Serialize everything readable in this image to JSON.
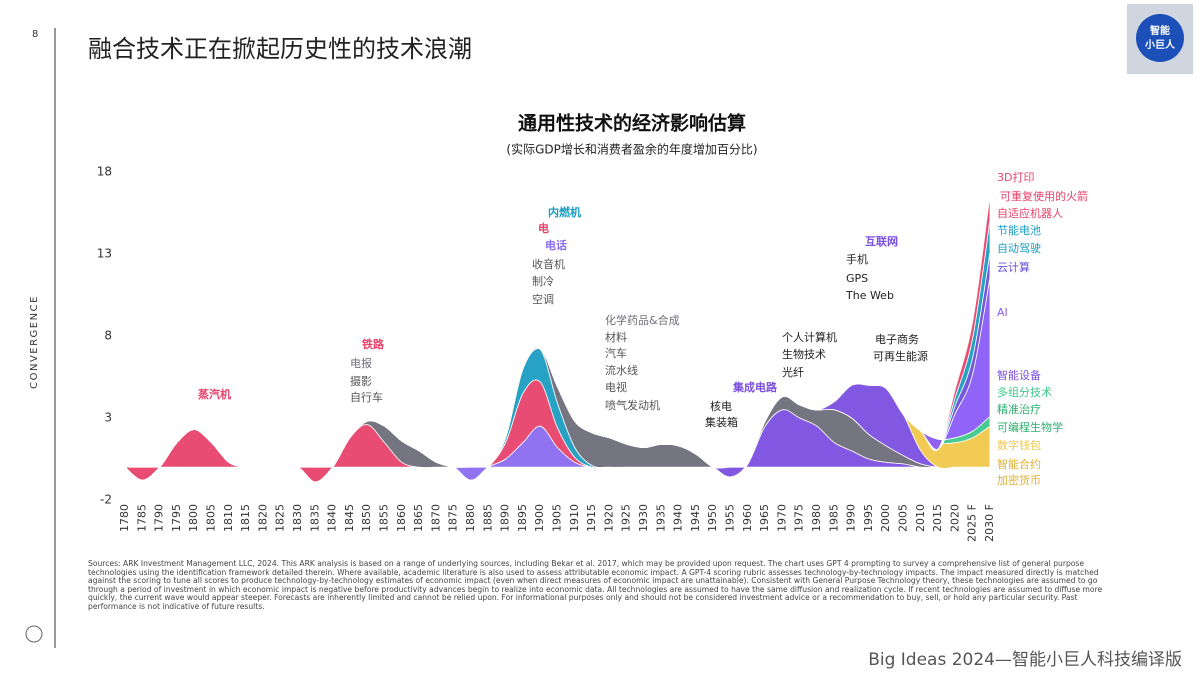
{
  "page_number": "8",
  "page_title": "融合技术正在掀起历史性的技术浪潮",
  "logo": [
    "智能",
    "小巨人"
  ],
  "side_label": "CONVERGENCE",
  "chart_data": {
    "type": "stream",
    "title": "通用性技术的经济影响估算",
    "subtitle": "(实际GDP增长和消费者盈余的年度增加百分比)",
    "categories": [
      "1780",
      "1785",
      "1790",
      "1795",
      "1800",
      "1805",
      "1810",
      "1815",
      "1820",
      "1825",
      "1830",
      "1835",
      "1840",
      "1845",
      "1850",
      "1855",
      "1860",
      "1865",
      "1870",
      "1875",
      "1880",
      "1885",
      "1890",
      "1895",
      "1900",
      "1905",
      "1910",
      "1915",
      "1920",
      "1925",
      "1930",
      "1935",
      "1940",
      "1945",
      "1950",
      "1955",
      "1960",
      "1965",
      "1970",
      "1975",
      "1980",
      "1985",
      "1990",
      "1995",
      "2000",
      "2005",
      "2010",
      "2015",
      "2020",
      "2025 F",
      "2030 F"
    ],
    "ylim": [
      -2,
      18
    ],
    "yticks": [
      -2,
      3,
      8,
      13,
      18
    ],
    "series": [
      {
        "name": "蒸汽机",
        "color": "#e8426a",
        "values": [
          0,
          -0.8,
          0,
          1.5,
          2.3,
          1.5,
          0.3,
          0,
          0,
          0,
          0,
          0,
          0,
          0,
          0,
          0,
          0,
          0,
          0,
          0,
          0,
          0,
          0,
          0,
          0,
          0,
          0,
          0,
          0,
          0,
          0,
          0,
          0,
          0,
          0,
          0,
          0,
          0,
          0,
          0,
          0,
          0,
          0,
          0,
          0,
          0,
          0,
          0,
          0,
          0,
          0
        ]
      },
      {
        "name": "铁路",
        "color": "#e8426a",
        "values": [
          0,
          0,
          0,
          0,
          0,
          0,
          0,
          0,
          0,
          0,
          0,
          -0.9,
          0,
          1.8,
          2.6,
          1.5,
          0.3,
          0,
          0,
          0,
          0,
          0,
          0,
          0,
          0,
          0,
          0,
          0,
          0,
          0,
          0,
          0,
          0,
          0,
          0,
          0,
          0,
          0,
          0,
          0,
          0,
          0,
          0,
          0,
          0,
          0,
          0,
          0,
          0,
          0,
          0
        ]
      },
      {
        "name": "电报",
        "color": "#6e6e7a",
        "values": [
          0,
          0,
          0,
          0,
          0,
          0,
          0,
          0,
          0,
          0,
          0,
          0,
          0,
          0,
          0.2,
          1.0,
          1.3,
          1.0,
          0.3,
          0,
          0,
          0,
          0,
          0,
          0,
          0,
          0,
          0,
          0,
          0,
          0,
          0,
          0,
          0,
          0,
          0,
          0,
          0,
          0,
          0,
          0,
          0,
          0,
          0,
          0,
          0,
          0,
          0,
          0,
          0,
          0
        ]
      },
      {
        "name": "电话",
        "color": "#8a6cf0",
        "values": [
          0,
          0,
          0,
          0,
          0,
          0,
          0,
          0,
          0,
          0,
          0,
          0,
          0,
          0,
          0,
          0,
          0,
          0,
          0,
          0,
          -0.8,
          0,
          0.5,
          1.5,
          2.5,
          1.2,
          0.3,
          0,
          0,
          0,
          0,
          0,
          0,
          0,
          0,
          0,
          0,
          0,
          0,
          0,
          0,
          0,
          0,
          0,
          0,
          0,
          0,
          0,
          0,
          0,
          0
        ]
      },
      {
        "name": "电",
        "color": "#e8426a",
        "values": [
          0,
          0,
          0,
          0,
          0,
          0,
          0,
          0,
          0,
          0,
          0,
          0,
          0,
          0,
          0,
          0,
          0,
          0,
          0,
          0,
          0,
          0,
          1.0,
          3.0,
          2.7,
          1.2,
          0.3,
          0,
          0,
          0,
          0,
          0,
          0,
          0,
          0,
          0,
          0,
          0,
          0,
          0,
          0,
          0,
          0,
          0,
          0,
          0,
          0,
          0,
          0,
          0,
          0
        ]
      },
      {
        "name": "内燃机",
        "color": "#1b9dc2",
        "values": [
          0,
          0,
          0,
          0,
          0,
          0,
          0,
          0,
          0,
          0,
          0,
          0,
          0,
          0,
          0,
          0,
          0,
          0,
          0,
          0,
          0,
          0,
          0.3,
          1.5,
          2.0,
          1.5,
          0.6,
          0.1,
          0,
          0,
          0,
          0,
          0,
          0,
          0,
          0,
          0,
          0,
          0,
          0,
          0,
          0,
          0,
          0,
          0,
          0,
          0,
          0,
          0,
          0,
          0
        ]
      },
      {
        "name": "化学药品&合成",
        "color": "#6e6e7a",
        "values": [
          0,
          0,
          0,
          0,
          0,
          0,
          0,
          0,
          0,
          0,
          0,
          0,
          0,
          0,
          0,
          0,
          0,
          0,
          0,
          0,
          0,
          0,
          0,
          0,
          0,
          1.0,
          1.6,
          2.0,
          1.8,
          1.4,
          1.2,
          1.4,
          1.3,
          0.8,
          0,
          0,
          0,
          0,
          0,
          0,
          0,
          0,
          0,
          0,
          0,
          0,
          0,
          0,
          0,
          0,
          0
        ]
      },
      {
        "name": "集成电路",
        "color": "#7b4fe0",
        "values": [
          0,
          0,
          0,
          0,
          0,
          0,
          0,
          0,
          0,
          0,
          0,
          0,
          0,
          0,
          0,
          0,
          0,
          0,
          0,
          0,
          0,
          0,
          0,
          0,
          0,
          0,
          0,
          0,
          0,
          0,
          0,
          0,
          0,
          0,
          0,
          -0.6,
          0.2,
          2.5,
          3.5,
          3.0,
          2.5,
          1.5,
          1.0,
          0.5,
          0.3,
          0.2,
          0,
          0,
          0,
          0,
          0
        ]
      },
      {
        "name": "个人计算机",
        "color": "#6e6e7a",
        "values": [
          0,
          0,
          0,
          0,
          0,
          0,
          0,
          0,
          0,
          0,
          0,
          0,
          0,
          0,
          0,
          0,
          0,
          0,
          0,
          0,
          0,
          0,
          0,
          0,
          0,
          0,
          0,
          0,
          0,
          0,
          0,
          0,
          0,
          0,
          0,
          0,
          0,
          0.3,
          0.8,
          0.8,
          1.0,
          2.0,
          2.0,
          1.5,
          1.0,
          0.5,
          0.2,
          0,
          0,
          0,
          0
        ]
      },
      {
        "name": "互联网",
        "color": "#7b4fe0",
        "values": [
          0,
          0,
          0,
          0,
          0,
          0,
          0,
          0,
          0,
          0,
          0,
          0,
          0,
          0,
          0,
          0,
          0,
          0,
          0,
          0,
          0,
          0,
          0,
          0,
          0,
          0,
          0,
          0,
          0,
          0,
          0,
          0,
          0,
          0,
          0,
          0,
          0,
          0,
          0,
          0,
          0,
          0.5,
          2.0,
          3.0,
          3.5,
          2.5,
          0.8,
          0,
          0,
          0,
          0
        ]
      },
      {
        "name": "数字钱包",
        "color": "#f0c84a",
        "values": [
          0,
          0,
          0,
          0,
          0,
          0,
          0,
          0,
          0,
          0,
          0,
          0,
          0,
          0,
          0,
          0,
          0,
          0,
          0,
          0,
          0,
          0,
          0,
          0,
          0,
          0,
          0,
          0,
          0,
          0,
          0,
          0,
          0,
          0,
          0,
          0,
          0,
          0,
          0,
          0,
          0,
          0,
          0,
          0,
          0,
          0,
          1.2,
          1.5,
          1.5,
          1.8,
          2.5
        ]
      },
      {
        "name": "多组分技术",
        "color": "#3cc88a",
        "values": [
          0,
          0,
          0,
          0,
          0,
          0,
          0,
          0,
          0,
          0,
          0,
          0,
          0,
          0,
          0,
          0,
          0,
          0,
          0,
          0,
          0,
          0,
          0,
          0,
          0,
          0,
          0,
          0,
          0,
          0,
          0,
          0,
          0,
          0,
          0,
          0,
          0,
          0,
          0,
          0,
          0,
          0,
          0,
          0,
          0,
          0,
          0,
          0.2,
          0.3,
          0.4,
          0.6
        ]
      },
      {
        "name": "AI",
        "color": "#8a5cf6",
        "values": [
          0,
          0,
          0,
          0,
          0,
          0,
          0,
          0,
          0,
          0,
          0,
          0,
          0,
          0,
          0,
          0,
          0,
          0,
          0,
          0,
          0,
          0,
          0,
          0,
          0,
          0,
          0,
          0,
          0,
          0,
          0,
          0,
          0,
          0,
          0,
          0,
          0,
          0,
          0,
          0,
          0,
          0,
          0,
          0,
          0,
          0,
          0,
          -0.6,
          1.5,
          3.5,
          8.5
        ]
      },
      {
        "name": "云计算",
        "color": "#6a4fd8",
        "values": [
          0,
          0,
          0,
          0,
          0,
          0,
          0,
          0,
          0,
          0,
          0,
          0,
          0,
          0,
          0,
          0,
          0,
          0,
          0,
          0,
          0,
          0,
          0,
          0,
          0,
          0,
          0,
          0,
          0,
          0,
          0,
          0,
          0,
          0,
          0,
          0,
          0,
          0,
          0,
          0,
          0,
          0,
          0,
          0,
          0,
          0,
          0,
          0,
          0.5,
          1.0,
          1.5
        ]
      },
      {
        "name": "节能电池",
        "color": "#1b9dc2",
        "values": [
          0,
          0,
          0,
          0,
          0,
          0,
          0,
          0,
          0,
          0,
          0,
          0,
          0,
          0,
          0,
          0,
          0,
          0,
          0,
          0,
          0,
          0,
          0,
          0,
          0,
          0,
          0,
          0,
          0,
          0,
          0,
          0,
          0,
          0,
          0,
          0,
          0,
          0,
          0,
          0,
          0,
          0,
          0,
          0,
          0,
          0,
          0,
          0,
          0.5,
          1.2,
          2.0
        ]
      },
      {
        "name": "3D打印",
        "color": "#e8426a",
        "values": [
          0,
          0,
          0,
          0,
          0,
          0,
          0,
          0,
          0,
          0,
          0,
          0,
          0,
          0,
          0,
          0,
          0,
          0,
          0,
          0,
          0,
          0,
          0,
          0,
          0,
          0,
          0,
          0,
          0,
          0,
          0,
          0,
          0,
          0,
          0,
          0,
          0,
          0,
          0,
          0,
          0,
          0,
          0,
          0,
          0,
          0,
          0,
          0,
          0.5,
          1.0,
          1.5
        ]
      }
    ],
    "annotations": [
      {
        "text": "摄影",
        "color": "#555555"
      },
      {
        "text": "自行车",
        "color": "#555555"
      },
      {
        "text": "收音机",
        "color": "#555555"
      },
      {
        "text": "制冷",
        "color": "#555555"
      },
      {
        "text": "空调",
        "color": "#555555"
      },
      {
        "text": "材料",
        "color": "#555555"
      },
      {
        "text": "汽车",
        "color": "#555555"
      },
      {
        "text": "流水线",
        "color": "#555555"
      },
      {
        "text": "电视",
        "color": "#555555"
      },
      {
        "text": "喷气发动机",
        "color": "#555555"
      },
      {
        "text": "核电",
        "color": "#222222"
      },
      {
        "text": "集装箱",
        "color": "#222222"
      },
      {
        "text": "生物技术",
        "color": "#222222"
      },
      {
        "text": "光纤",
        "color": "#222222"
      },
      {
        "text": "手机",
        "color": "#222222"
      },
      {
        "text": "GPS",
        "color": "#222222"
      },
      {
        "text": "The Web",
        "color": "#222222"
      },
      {
        "text": "电子商务",
        "color": "#222222"
      },
      {
        "text": "可再生能源",
        "color": "#222222"
      },
      {
        "text": "可重复使用的火箭",
        "color": "#e8426a"
      },
      {
        "text": "自适应机器人",
        "color": "#e8426a"
      },
      {
        "text": "自动驾驶",
        "color": "#1b9dc2"
      },
      {
        "text": "智能设备",
        "color": "#7b4fe0"
      },
      {
        "text": "精准治疗",
        "color": "#2fb070"
      },
      {
        "text": "可编程生物学",
        "color": "#2fb070"
      },
      {
        "text": "智能合约",
        "color": "#e0b030"
      },
      {
        "text": "加密货币",
        "color": "#e0b030"
      }
    ]
  },
  "sources": "Sources: ARK Investment Management LLC, 2024. This ARK analysis is based on a range of underlying sources, including Bekar et al. 2017, which may be provided upon request. The chart uses GPT 4 prompting to survey a comprehensive list of general purpose technologies using the identification framework detailed therein. Where available, academic literature is also used to assess attributable economic impact. A GPT-4 scoring rubric assesses technology-by-technology impacts. The impact measured directly is matched against the scoring to tune all scores to produce technology-by-technology estimates of economic impact (even when direct measures of economic impact are unattainable). Consistent with General Purpose Technology theory, these technologies are assumed to go through a period of investment in which economic impact is negative before productivity advances begin to realize into economic data. All technologies are assumed to have the same diffusion and realization cycle. If recent technologies are assumed to diffuse more quickly, the current wave would appear steeper. Forecasts are inherently limited and cannot be relied upon. For informational purposes only and should not be considered investment advice or a recommendation to buy, sell, or hold any particular security. Past performance is not indicative of future results.",
  "footer": "Big Ideas 2024—智能小巨人科技编译版"
}
